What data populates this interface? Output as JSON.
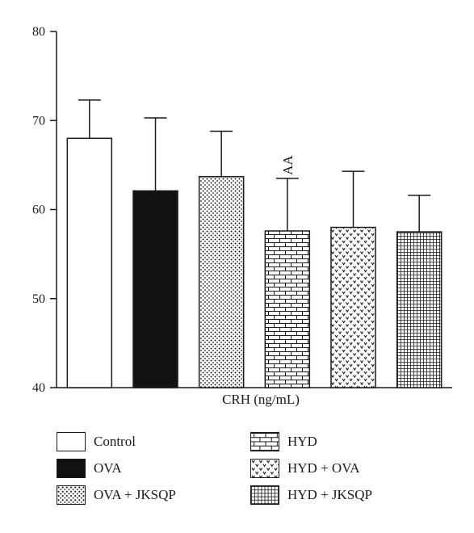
{
  "chart_data": {
    "type": "bar",
    "xlabel": "CRH (ng/mL)",
    "ylabel": "",
    "ylim": [
      40,
      80
    ],
    "yticks": [
      40,
      50,
      60,
      70,
      80
    ],
    "grid": false,
    "legend_position": "bottom",
    "categories": [
      "Control",
      "OVA",
      "OVA + JKSQP",
      "HYD",
      "HYD + OVA",
      "HYD + JKSQP"
    ],
    "values": [
      68.0,
      62.1,
      63.7,
      57.6,
      58.0,
      57.5
    ],
    "errors": [
      4.3,
      8.2,
      5.1,
      5.9,
      6.3,
      4.1
    ],
    "annotations": [
      {
        "category": "HYD",
        "text": "AA"
      }
    ],
    "fills": [
      "white",
      "black",
      "dots",
      "brick",
      "hearts",
      "grid"
    ]
  }
}
